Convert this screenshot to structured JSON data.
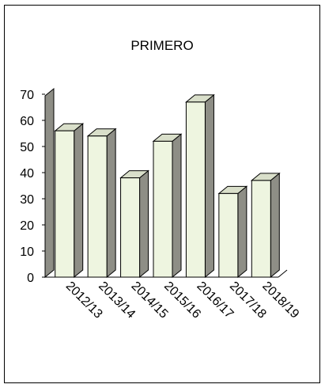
{
  "chart_data": {
    "type": "bar",
    "title": "PRIMERO",
    "categories": [
      "2012/13",
      "2013/14",
      "2014/15",
      "2015/16",
      "2016/17",
      "2017/18",
      "2018/19"
    ],
    "values": [
      56,
      54,
      38,
      52,
      67,
      32,
      37
    ],
    "yticks": [
      0,
      10,
      20,
      30,
      40,
      50,
      60,
      70
    ],
    "ylim": [
      0,
      70
    ],
    "grid": false,
    "legend": "none",
    "style": "3d",
    "colors": {
      "bar_front": "#eef5e0",
      "bar_top": "#d9dfca",
      "bar_side": "#8e8e86",
      "wall": "#8e8e86",
      "axis": "#000000"
    }
  }
}
